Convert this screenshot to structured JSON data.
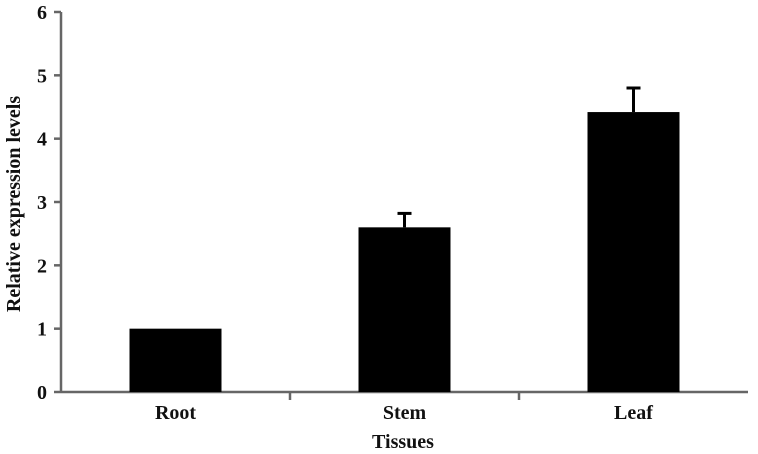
{
  "chart_data": {
    "type": "bar",
    "categories": [
      "Root",
      "Stem",
      "Leaf"
    ],
    "values": [
      1.0,
      2.6,
      4.42
    ],
    "error_upper": [
      0.0,
      0.22,
      0.38
    ],
    "xlabel": "Tissues",
    "ylabel": "Relative expression levels",
    "ylim": [
      0,
      6
    ],
    "yticks": [
      "0",
      "1",
      "2",
      "3",
      "4",
      "5",
      "6"
    ],
    "grid": false,
    "legend": "none",
    "bar_color": "#000000",
    "axis_color": "#666666"
  }
}
